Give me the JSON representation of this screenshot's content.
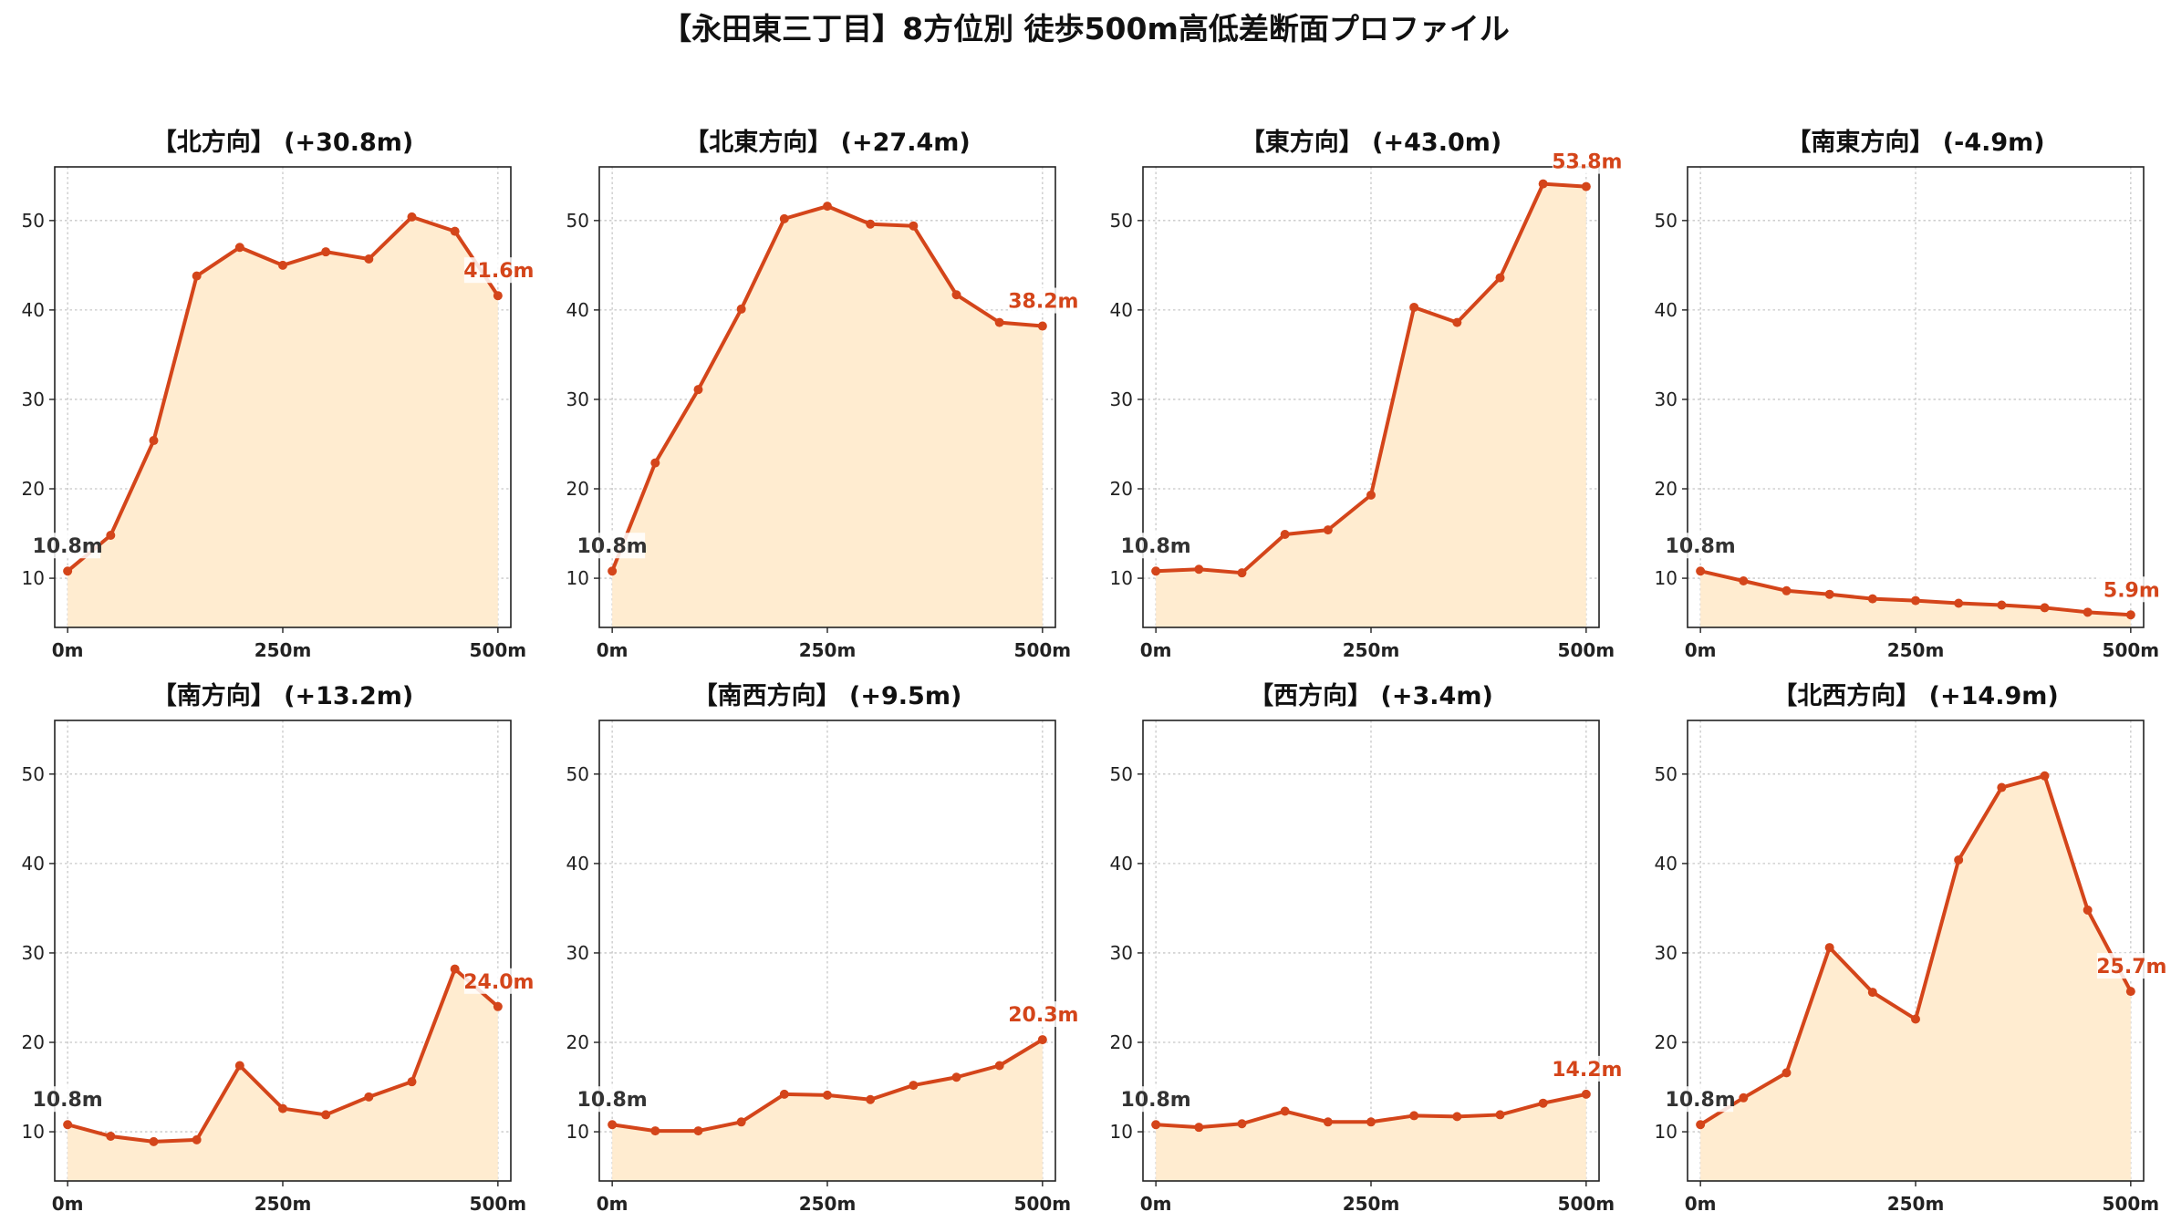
{
  "chart_data": {
    "type": "line",
    "title": "【永田東三丁目】8方位別 徒歩500m高低差断面プロファイル",
    "x": [
      0,
      50,
      100,
      150,
      200,
      250,
      300,
      350,
      400,
      450,
      500
    ],
    "xticks": [
      "0m",
      "250m",
      "500m"
    ],
    "yticks": [
      10,
      20,
      30,
      40,
      50
    ],
    "xlim": [
      -15,
      515
    ],
    "ylim": [
      4.5,
      56
    ],
    "grid": true,
    "colors": {
      "line": "#d4451a",
      "fill": "#ffecd0",
      "start_label": "#333333",
      "end_label": "#d4451a"
    },
    "panels": [
      {
        "title": "【北方向】 (+30.8m)",
        "values": [
          10.8,
          14.8,
          25.4,
          43.8,
          47.0,
          45.0,
          46.5,
          45.7,
          50.4,
          48.8,
          41.6
        ],
        "start_label": "10.8m",
        "end_label": "41.6m"
      },
      {
        "title": "【北東方向】 (+27.4m)",
        "values": [
          10.8,
          22.9,
          31.1,
          40.1,
          50.2,
          51.6,
          49.6,
          49.4,
          41.7,
          38.6,
          38.2
        ],
        "start_label": "10.8m",
        "end_label": "38.2m"
      },
      {
        "title": "【東方向】 (+43.0m)",
        "values": [
          10.8,
          11.0,
          10.6,
          14.9,
          15.4,
          19.3,
          40.3,
          38.6,
          43.6,
          54.1,
          53.8
        ],
        "start_label": "10.8m",
        "end_label": "53.8m"
      },
      {
        "title": "【南東方向】 (-4.9m)",
        "values": [
          10.8,
          9.7,
          8.6,
          8.2,
          7.7,
          7.5,
          7.2,
          7.0,
          6.7,
          6.2,
          5.9
        ],
        "start_label": "10.8m",
        "end_label": "5.9m"
      },
      {
        "title": "【南方向】 (+13.2m)",
        "values": [
          10.8,
          9.5,
          8.9,
          9.1,
          17.4,
          12.6,
          11.9,
          13.9,
          15.6,
          28.2,
          24.0
        ],
        "start_label": "10.8m",
        "end_label": "24.0m"
      },
      {
        "title": "【南西方向】 (+9.5m)",
        "values": [
          10.8,
          10.1,
          10.1,
          11.1,
          14.2,
          14.1,
          13.6,
          15.2,
          16.1,
          17.4,
          20.3
        ],
        "start_label": "10.8m",
        "end_label": "20.3m"
      },
      {
        "title": "【西方向】 (+3.4m)",
        "values": [
          10.8,
          10.5,
          10.9,
          12.3,
          11.1,
          11.1,
          11.8,
          11.7,
          11.9,
          13.2,
          14.2
        ],
        "start_label": "10.8m",
        "end_label": "14.2m"
      },
      {
        "title": "【北西方向】 (+14.9m)",
        "values": [
          10.8,
          13.8,
          16.6,
          30.6,
          25.6,
          22.6,
          40.4,
          48.5,
          49.8,
          34.8,
          25.7
        ],
        "start_label": "10.8m",
        "end_label": "25.7m"
      }
    ]
  }
}
